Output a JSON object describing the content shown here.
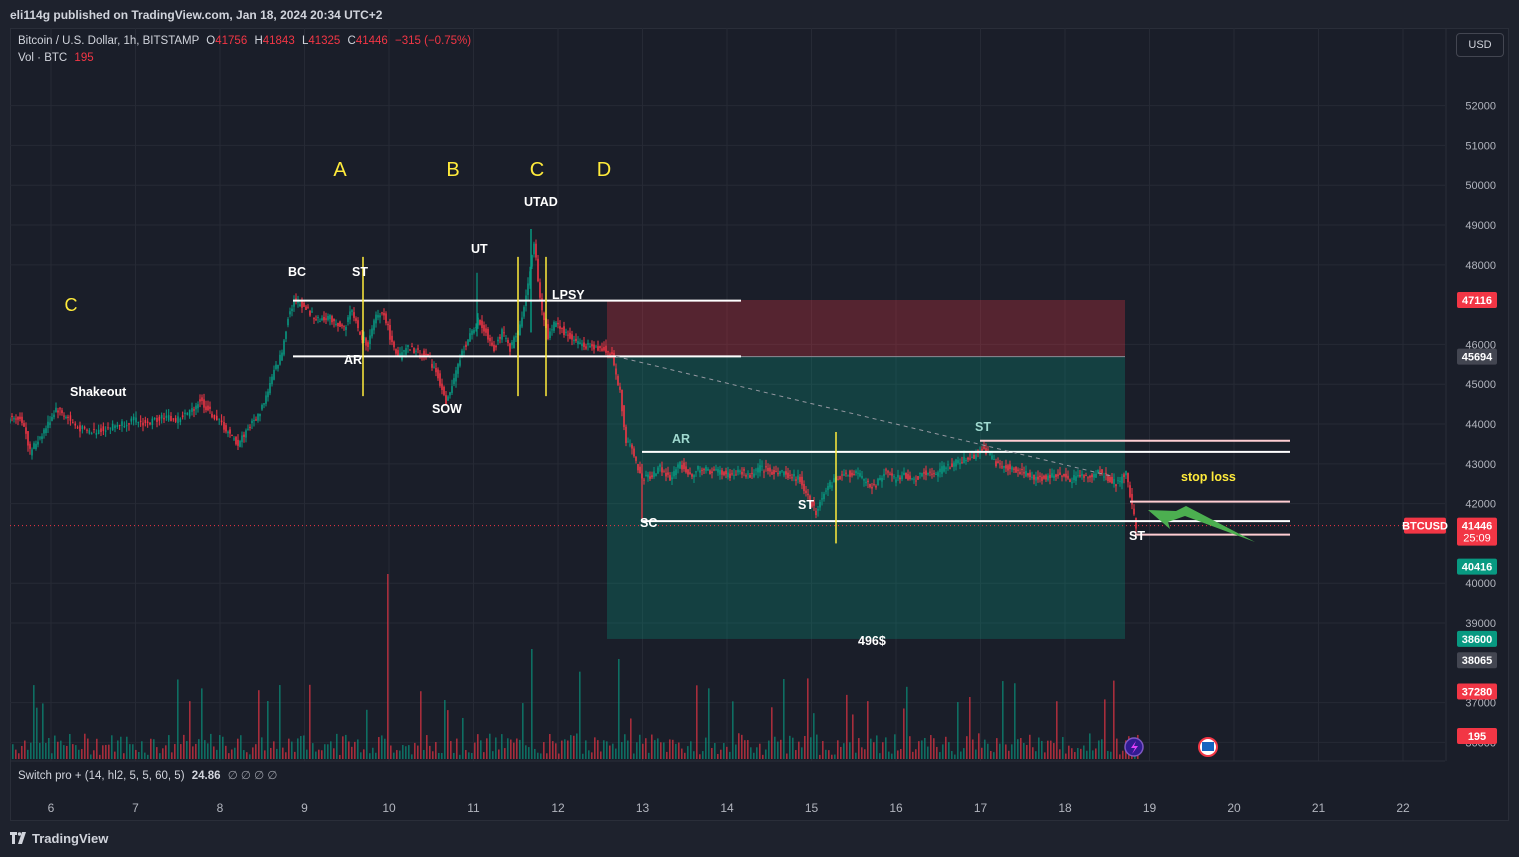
{
  "publisher": "eli114g published on TradingView.com, Jan 18, 2024 20:34 UTC+2",
  "symbol": {
    "name": "Bitcoin / U.S. Dollar, 1h, BITSTAMP",
    "o_label": "O",
    "o": "41756",
    "h_label": "H",
    "h": "41843",
    "l_label": "L",
    "l": "41325",
    "c_label": "C",
    "c": "41446",
    "change": "−315 (−0.75%)"
  },
  "volume": {
    "label": "Vol · BTC",
    "value": "195"
  },
  "currency_button": "USD",
  "indicator": {
    "name": "Switch pro + (14, hl2, 5, 5, 60, 5)",
    "value": "24.86",
    "zeros": "∅ ∅ ∅ ∅"
  },
  "brand": "TradingView",
  "colors": {
    "up": "#089981",
    "down": "#f23645",
    "annotation_yellow": "#ffeb3b",
    "background": "#1a1e29"
  },
  "chart_data": {
    "type": "candlestick",
    "x_ticks": [
      "6",
      "7",
      "8",
      "9",
      "10",
      "11",
      "12",
      "13",
      "14",
      "15",
      "16",
      "17",
      "18",
      "19",
      "20",
      "21",
      "22"
    ],
    "y_ticks": [
      "52000",
      "51000",
      "50000",
      "49000",
      "48000",
      "46000",
      "45000",
      "44000",
      "43000",
      "42000",
      "40000",
      "39000",
      "37000",
      "36000"
    ],
    "ylim": [
      35400,
      53400
    ],
    "price_tags": [
      {
        "value": "47116",
        "color": "#f23645"
      },
      {
        "value": "45694",
        "color": "#434651"
      },
      {
        "value": "41446",
        "color": "#f23645",
        "sub": "25:09"
      },
      {
        "value": "40416",
        "color": "#089981"
      },
      {
        "value": "38600",
        "color": "#089981"
      },
      {
        "value": "38065",
        "color": "#434651"
      },
      {
        "value": "37280",
        "color": "#f23645"
      },
      {
        "value": "195",
        "color": "#f23645"
      }
    ],
    "symbol_tag": "BTCUSD",
    "annotations": {
      "phase_letters": [
        "A",
        "B",
        "C",
        "D"
      ],
      "left_c": "C",
      "labels": [
        "Shakeout",
        "BC",
        "ST",
        "AR",
        "SOW",
        "UT",
        "UTAD",
        "LPSY",
        "AR",
        "SC",
        "ST",
        "ST",
        "ST",
        "stop loss",
        "496$"
      ]
    },
    "position": {
      "entry": 45694,
      "stop": 47116,
      "target": 38600
    },
    "series_points": [
      [
        0,
        44100
      ],
      [
        8,
        44200
      ],
      [
        16,
        44000
      ],
      [
        22,
        43300
      ],
      [
        30,
        43600
      ],
      [
        40,
        44000
      ],
      [
        48,
        44400
      ],
      [
        58,
        44200
      ],
      [
        70,
        43900
      ],
      [
        84,
        43800
      ],
      [
        98,
        43900
      ],
      [
        112,
        44000
      ],
      [
        126,
        44100
      ],
      [
        140,
        44000
      ],
      [
        154,
        44200
      ],
      [
        168,
        44100
      ],
      [
        182,
        44300
      ],
      [
        192,
        44600
      ],
      [
        202,
        44300
      ],
      [
        214,
        44000
      ],
      [
        222,
        43700
      ],
      [
        230,
        43500
      ],
      [
        240,
        43900
      ],
      [
        250,
        44200
      ],
      [
        258,
        44700
      ],
      [
        266,
        45300
      ],
      [
        274,
        45800
      ],
      [
        280,
        46700
      ],
      [
        286,
        47100
      ],
      [
        294,
        47000
      ],
      [
        302,
        46800
      ],
      [
        310,
        46600
      ],
      [
        318,
        46700
      ],
      [
        326,
        46600
      ],
      [
        336,
        46400
      ],
      [
        344,
        46900
      ],
      [
        352,
        46200
      ],
      [
        360,
        46000
      ],
      [
        368,
        46700
      ],
      [
        376,
        46800
      ],
      [
        384,
        46000
      ],
      [
        392,
        45700
      ],
      [
        400,
        45900
      ],
      [
        410,
        45800
      ],
      [
        420,
        45700
      ],
      [
        430,
        45200
      ],
      [
        438,
        44500
      ],
      [
        446,
        45100
      ],
      [
        454,
        45800
      ],
      [
        462,
        46200
      ],
      [
        470,
        46600
      ],
      [
        478,
        46300
      ],
      [
        486,
        45900
      ],
      [
        494,
        46300
      ],
      [
        502,
        45900
      ],
      [
        510,
        46300
      ],
      [
        518,
        47200
      ],
      [
        526,
        48600
      ],
      [
        532,
        47100
      ],
      [
        540,
        46200
      ],
      [
        548,
        46600
      ],
      [
        556,
        46300
      ],
      [
        566,
        46100
      ],
      [
        576,
        46000
      ],
      [
        586,
        45900
      ],
      [
        596,
        45900
      ],
      [
        604,
        45700
      ],
      [
        612,
        44800
      ],
      [
        618,
        43600
      ],
      [
        626,
        43200
      ],
      [
        634,
        42600
      ],
      [
        642,
        42700
      ],
      [
        652,
        42900
      ],
      [
        662,
        42600
      ],
      [
        672,
        43000
      ],
      [
        682,
        42700
      ],
      [
        692,
        42900
      ],
      [
        702,
        42800
      ],
      [
        712,
        42800
      ],
      [
        722,
        42700
      ],
      [
        732,
        42800
      ],
      [
        742,
        42700
      ],
      [
        752,
        42900
      ],
      [
        762,
        42800
      ],
      [
        772,
        42800
      ],
      [
        782,
        42700
      ],
      [
        792,
        42600
      ],
      [
        800,
        42200
      ],
      [
        808,
        41800
      ],
      [
        816,
        42300
      ],
      [
        826,
        42600
      ],
      [
        836,
        42700
      ],
      [
        846,
        42800
      ],
      [
        856,
        42600
      ],
      [
        866,
        42400
      ],
      [
        876,
        42800
      ],
      [
        886,
        42600
      ],
      [
        896,
        42700
      ],
      [
        906,
        42600
      ],
      [
        916,
        42800
      ],
      [
        926,
        42700
      ],
      [
        936,
        42900
      ],
      [
        946,
        43000
      ],
      [
        956,
        43100
      ],
      [
        966,
        43200
      ],
      [
        974,
        43400
      ],
      [
        982,
        43200
      ],
      [
        992,
        42900
      ],
      [
        1002,
        42900
      ],
      [
        1012,
        42800
      ],
      [
        1022,
        42700
      ],
      [
        1032,
        42600
      ],
      [
        1042,
        42700
      ],
      [
        1052,
        42700
      ],
      [
        1062,
        42600
      ],
      [
        1072,
        42700
      ],
      [
        1082,
        42700
      ],
      [
        1092,
        42800
      ],
      [
        1102,
        42600
      ],
      [
        1110,
        42500
      ],
      [
        1118,
        42800
      ],
      [
        1124,
        41900
      ],
      [
        1128,
        41446
      ]
    ]
  }
}
